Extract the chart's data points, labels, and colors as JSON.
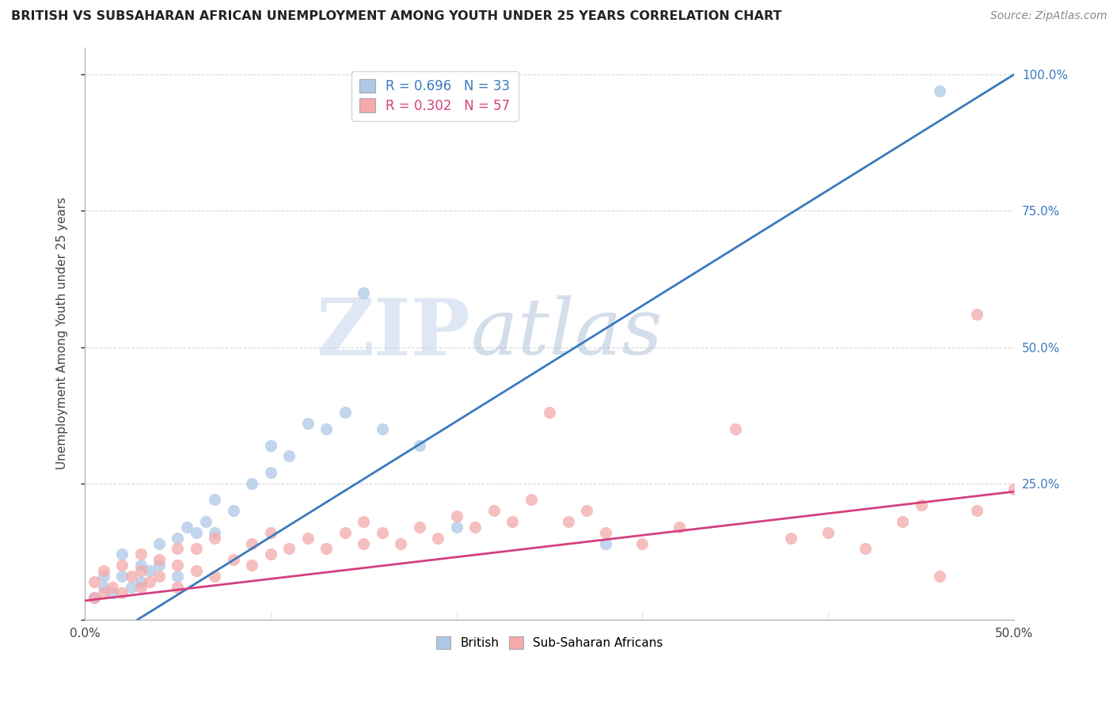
{
  "title": "BRITISH VS SUBSAHARAN AFRICAN UNEMPLOYMENT AMONG YOUTH UNDER 25 YEARS CORRELATION CHART",
  "source": "Source: ZipAtlas.com",
  "ylabel": "Unemployment Among Youth under 25 years",
  "xlim": [
    0.0,
    0.5
  ],
  "ylim": [
    0.0,
    1.05
  ],
  "xticks": [
    0.0,
    0.1,
    0.2,
    0.3,
    0.4,
    0.5
  ],
  "yticks": [
    0.0,
    0.25,
    0.5,
    0.75,
    1.0
  ],
  "blue_R": 0.696,
  "blue_N": 33,
  "pink_R": 0.302,
  "pink_N": 57,
  "blue_color": "#aec8e8",
  "pink_color": "#f4aaaa",
  "blue_line_color": "#3a7abf",
  "pink_line_color": "#d44080",
  "legend_blue_label": "R = 0.696   N = 33",
  "legend_pink_label": "R = 0.302   N = 57",
  "blue_line_intercept": -0.06,
  "blue_line_slope": 2.12,
  "pink_line_intercept": 0.035,
  "pink_line_slope": 0.4,
  "blue_scatter_x": [
    0.005,
    0.01,
    0.01,
    0.015,
    0.02,
    0.02,
    0.025,
    0.03,
    0.03,
    0.035,
    0.04,
    0.04,
    0.05,
    0.05,
    0.055,
    0.06,
    0.065,
    0.07,
    0.07,
    0.08,
    0.09,
    0.1,
    0.1,
    0.11,
    0.12,
    0.13,
    0.14,
    0.15,
    0.16,
    0.18,
    0.2,
    0.28,
    0.46
  ],
  "blue_scatter_y": [
    0.04,
    0.06,
    0.08,
    0.05,
    0.08,
    0.12,
    0.06,
    0.07,
    0.1,
    0.09,
    0.1,
    0.14,
    0.08,
    0.15,
    0.17,
    0.16,
    0.18,
    0.16,
    0.22,
    0.2,
    0.25,
    0.27,
    0.32,
    0.3,
    0.36,
    0.35,
    0.38,
    0.6,
    0.35,
    0.32,
    0.17,
    0.14,
    0.97
  ],
  "pink_scatter_x": [
    0.005,
    0.005,
    0.01,
    0.01,
    0.015,
    0.02,
    0.02,
    0.025,
    0.03,
    0.03,
    0.03,
    0.035,
    0.04,
    0.04,
    0.05,
    0.05,
    0.05,
    0.06,
    0.06,
    0.07,
    0.07,
    0.08,
    0.09,
    0.09,
    0.1,
    0.1,
    0.11,
    0.12,
    0.13,
    0.14,
    0.15,
    0.15,
    0.16,
    0.17,
    0.18,
    0.19,
    0.2,
    0.21,
    0.22,
    0.23,
    0.24,
    0.25,
    0.26,
    0.27,
    0.28,
    0.3,
    0.32,
    0.35,
    0.38,
    0.4,
    0.42,
    0.44,
    0.45,
    0.46,
    0.48,
    0.48,
    0.5
  ],
  "pink_scatter_y": [
    0.04,
    0.07,
    0.05,
    0.09,
    0.06,
    0.05,
    0.1,
    0.08,
    0.06,
    0.09,
    0.12,
    0.07,
    0.08,
    0.11,
    0.06,
    0.1,
    0.13,
    0.09,
    0.13,
    0.08,
    0.15,
    0.11,
    0.1,
    0.14,
    0.12,
    0.16,
    0.13,
    0.15,
    0.13,
    0.16,
    0.14,
    0.18,
    0.16,
    0.14,
    0.17,
    0.15,
    0.19,
    0.17,
    0.2,
    0.18,
    0.22,
    0.38,
    0.18,
    0.2,
    0.16,
    0.14,
    0.17,
    0.35,
    0.15,
    0.16,
    0.13,
    0.18,
    0.21,
    0.08,
    0.2,
    0.56,
    0.24
  ],
  "watermark_zip": "ZIP",
  "watermark_atlas": "atlas",
  "background_color": "#ffffff",
  "grid_color": "#d8d8d8"
}
